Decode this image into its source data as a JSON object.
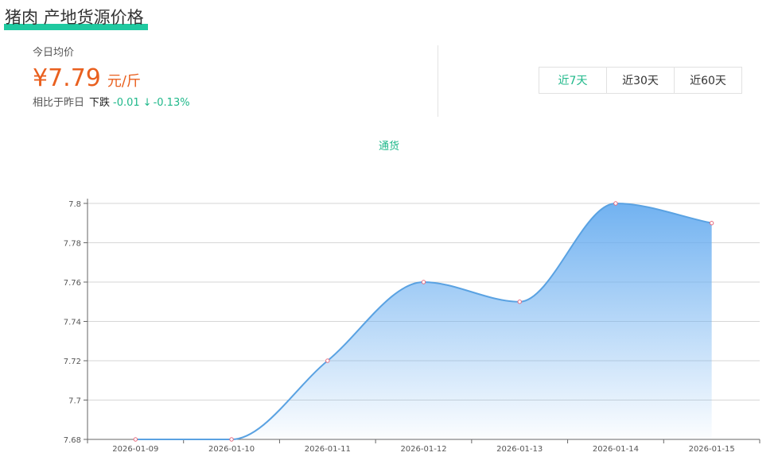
{
  "header": {
    "title": "猪肉 产地货源价格"
  },
  "summary": {
    "today_label": "今日均价",
    "price": "¥7.79",
    "unit": "元/斤",
    "compare_label": "相比于昨日",
    "direction": "下跌",
    "delta": "-0.01",
    "arrow": "↓",
    "percent": "-0.13%"
  },
  "range_tabs": [
    {
      "label": "近7天",
      "active": true
    },
    {
      "label": "近30天",
      "active": false
    },
    {
      "label": "近60天",
      "active": false
    }
  ],
  "colors": {
    "accent": "#1fb88a",
    "price": "#e9601f",
    "line": "#5aa2e2",
    "point": "#e66a7e"
  },
  "chart_data": {
    "type": "area",
    "legend_position": "top-center",
    "categories": [
      "2026-01-09",
      "2026-01-10",
      "2026-01-11",
      "2026-01-12",
      "2026-01-13",
      "2026-01-14",
      "2026-01-15"
    ],
    "series": [
      {
        "name": "通货",
        "values": [
          7.68,
          7.68,
          7.72,
          7.76,
          7.75,
          7.8,
          7.79
        ]
      }
    ],
    "yticks": [
      "7.68",
      "7.7",
      "7.72",
      "7.74",
      "7.76",
      "7.78",
      "7.8"
    ],
    "ylim": [
      7.68,
      7.8
    ],
    "smooth": true,
    "grid": true
  }
}
